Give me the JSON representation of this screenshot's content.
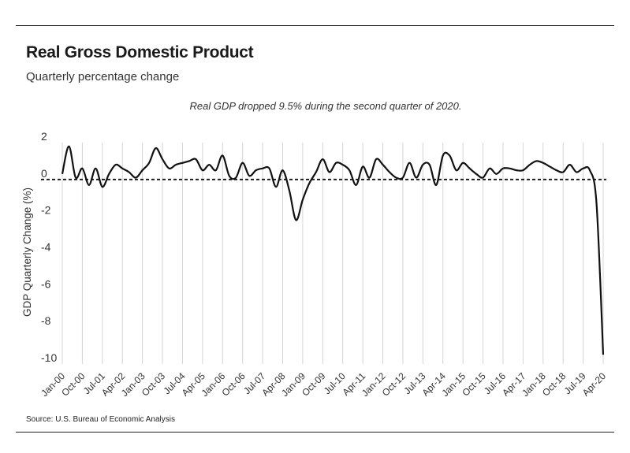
{
  "header": {
    "title": "Real Gross Domestic Product",
    "subtitle": "Quarterly percentage change"
  },
  "footer": {
    "source": "Source:  U.S. Bureau of Economic Analysis"
  },
  "chart_data": {
    "type": "line",
    "title": "Real Gross Domestic Product",
    "subtitle": "Quarterly percentage change",
    "annotation": "Real GDP dropped 9.5% during the second quarter of 2020.",
    "ylabel": "GDP Quarterly Change (%)",
    "xlabel": "",
    "ylim": [
      -10,
      2
    ],
    "yticks": [
      2,
      0,
      -2,
      -4,
      -6,
      -8,
      -10
    ],
    "grid": "vertical",
    "zero_line": "dashed",
    "x": [
      "Jan-00",
      "Apr-00",
      "Jul-00",
      "Oct-00",
      "Jan-01",
      "Apr-01",
      "Jul-01",
      "Oct-01",
      "Jan-02",
      "Apr-02",
      "Jul-02",
      "Oct-02",
      "Jan-03",
      "Apr-03",
      "Jul-03",
      "Oct-03",
      "Jan-04",
      "Apr-04",
      "Jul-04",
      "Oct-04",
      "Jan-05",
      "Apr-05",
      "Jul-05",
      "Oct-05",
      "Jan-06",
      "Apr-06",
      "Jul-06",
      "Oct-06",
      "Jan-07",
      "Apr-07",
      "Jul-07",
      "Oct-07",
      "Jan-08",
      "Apr-08",
      "Jul-08",
      "Oct-08",
      "Jan-09",
      "Apr-09",
      "Jul-09",
      "Oct-09",
      "Jan-10",
      "Apr-10",
      "Jul-10",
      "Oct-10",
      "Jan-11",
      "Apr-11",
      "Jul-11",
      "Oct-11",
      "Jan-12",
      "Apr-12",
      "Jul-12",
      "Oct-12",
      "Jan-13",
      "Apr-13",
      "Jul-13",
      "Oct-13",
      "Jan-14",
      "Apr-14",
      "Jul-14",
      "Oct-14",
      "Jan-15",
      "Apr-15",
      "Jul-15",
      "Oct-15",
      "Jan-16",
      "Apr-16",
      "Jul-16",
      "Oct-16",
      "Jan-17",
      "Apr-17",
      "Jul-17",
      "Oct-17",
      "Jan-18",
      "Apr-18",
      "Jul-18",
      "Oct-18",
      "Jan-19",
      "Apr-19",
      "Jul-19",
      "Oct-19",
      "Jan-20",
      "Apr-20"
    ],
    "x_tick_labels": [
      "Jan-00",
      "Oct-00",
      "Jul-01",
      "Apr-02",
      "Jan-03",
      "Oct-03",
      "Jul-04",
      "Apr-05",
      "Jan-06",
      "Oct-06",
      "Jul-07",
      "Apr-08",
      "Jan-09",
      "Oct-09",
      "Jul-10",
      "Apr-11",
      "Jan-12",
      "Oct-12",
      "Jul-13",
      "Apr-14",
      "Jan-15",
      "Oct-15",
      "Jul-16",
      "Apr-17",
      "Jan-18",
      "Oct-18",
      "Jul-19",
      "Apr-20"
    ],
    "series": [
      {
        "values": [
          0.3,
          1.8,
          0.1,
          0.6,
          -0.3,
          0.6,
          -0.4,
          0.3,
          0.8,
          0.6,
          0.4,
          0.1,
          0.5,
          0.9,
          1.7,
          1.1,
          0.6,
          0.8,
          0.9,
          1.0,
          1.1,
          0.5,
          0.8,
          0.5,
          1.3,
          0.2,
          0.1,
          0.9,
          0.2,
          0.5,
          0.6,
          0.6,
          -0.4,
          0.5,
          -0.6,
          -2.2,
          -1.1,
          -0.2,
          0.4,
          1.1,
          0.4,
          0.9,
          0.8,
          0.5,
          -0.3,
          0.7,
          0.1,
          1.1,
          0.8,
          0.4,
          0.1,
          0.1,
          0.9,
          0.1,
          0.8,
          0.8,
          -0.3,
          1.3,
          1.3,
          0.5,
          0.9,
          0.6,
          0.3,
          0.1,
          0.6,
          0.3,
          0.6,
          0.6,
          0.5,
          0.5,
          0.8,
          1.0,
          0.9,
          0.7,
          0.5,
          0.4,
          0.8,
          0.4,
          0.6,
          0.5,
          -1.3,
          -9.5
        ]
      }
    ],
    "colors": {
      "line": "#111111",
      "grid": "#d4d4d4",
      "zero": "#111111"
    }
  }
}
